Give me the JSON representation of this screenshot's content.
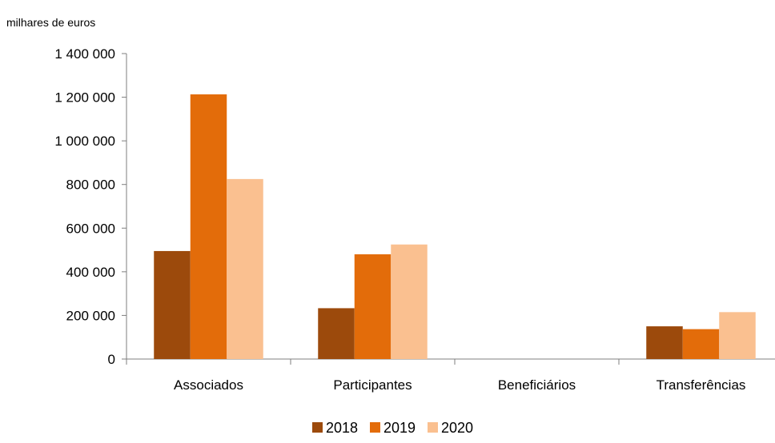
{
  "chart_data": {
    "type": "bar",
    "unit_label": "milhares de euros",
    "categories": [
      "Associados",
      "Participantes",
      "Beneficiários",
      "Transferências"
    ],
    "series": [
      {
        "name": "2018",
        "color": "#9C4A0C",
        "values": [
          495000,
          233000,
          0,
          150000
        ]
      },
      {
        "name": "2019",
        "color": "#E36C0A",
        "values": [
          1213000,
          480000,
          0,
          137000
        ]
      },
      {
        "name": "2020",
        "color": "#FAC090",
        "values": [
          825000,
          525000,
          0,
          215000
        ]
      }
    ],
    "ylim": [
      0,
      1400000
    ],
    "yticks": [
      {
        "value": 0,
        "label": "0"
      },
      {
        "value": 200000,
        "label": "200 000"
      },
      {
        "value": 400000,
        "label": "400 000"
      },
      {
        "value": 600000,
        "label": "600 000"
      },
      {
        "value": 800000,
        "label": "800 000"
      },
      {
        "value": 1000000,
        "label": "1 000 000"
      },
      {
        "value": 1200000,
        "label": "1 200 000"
      },
      {
        "value": 1400000,
        "label": "1 400 000"
      }
    ],
    "grid": false,
    "legend_position": "bottom-center",
    "axis_color": "#7F7F7F"
  }
}
